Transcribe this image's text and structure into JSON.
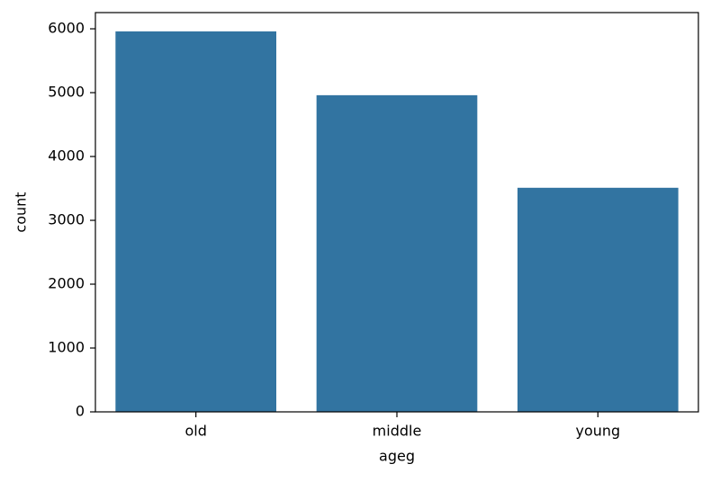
{
  "chart_data": {
    "type": "bar",
    "categories": [
      "old",
      "middle",
      "young"
    ],
    "values": [
      5960,
      4960,
      3510
    ],
    "color": "#3274a1",
    "xlabel": "ageg",
    "ylabel": "count",
    "ylim": [
      0,
      6254
    ],
    "yticks": [
      0,
      1000,
      2000,
      3000,
      4000,
      5000,
      6000
    ],
    "grid": false
  }
}
